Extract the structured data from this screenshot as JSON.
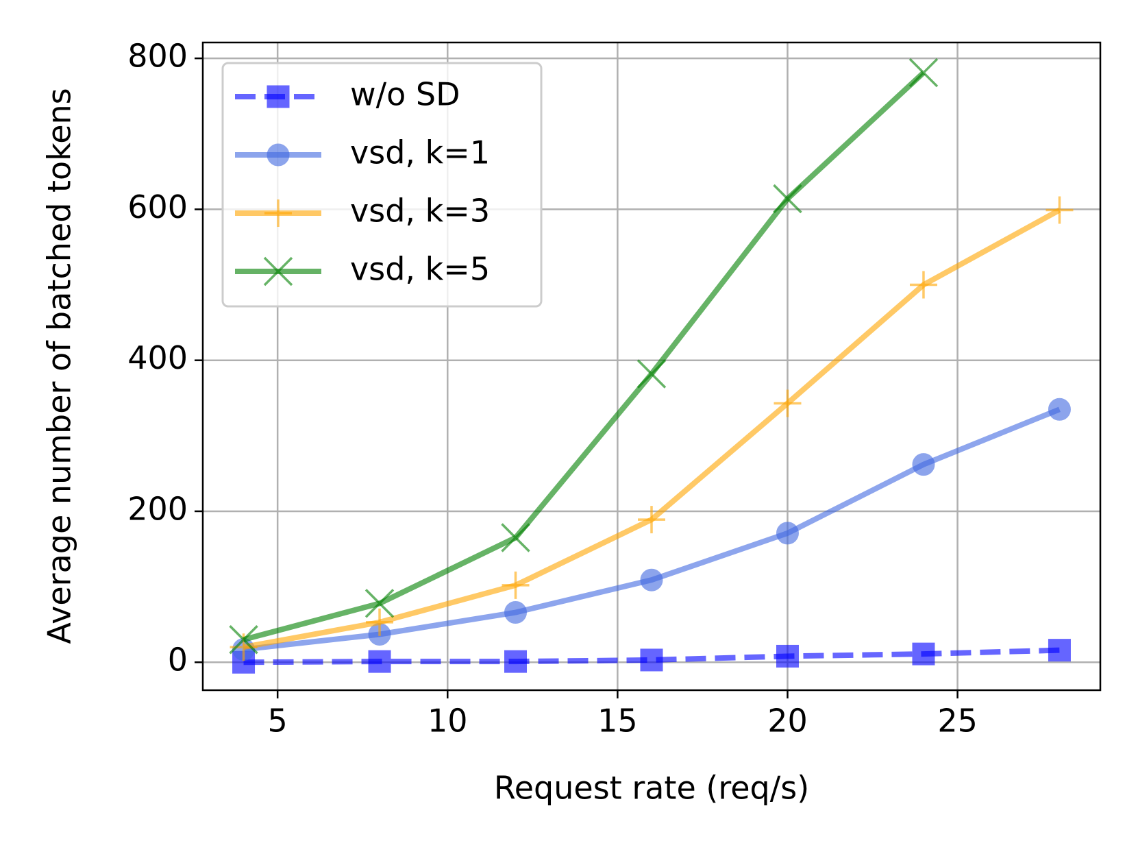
{
  "chart_data": {
    "type": "line",
    "xlabel": "Request rate (req/s)",
    "ylabel": "Average number of batched tokens",
    "x": [
      4,
      8,
      12,
      16,
      20,
      24,
      28
    ],
    "series": [
      {
        "name": "w/o SD",
        "color": "#0000ff",
        "marker": "square",
        "linestyle": "dashed",
        "values": [
          0,
          1,
          1,
          3,
          8,
          11,
          16
        ]
      },
      {
        "name": "vsd, k=1",
        "color": "#4169e1",
        "marker": "circle",
        "linestyle": "solid",
        "values": [
          17,
          37,
          66,
          109,
          171,
          262,
          335
        ]
      },
      {
        "name": "vsd, k=3",
        "color": "#ffa500",
        "marker": "plus",
        "linestyle": "solid",
        "values": [
          20,
          53,
          102,
          189,
          343,
          500,
          599
        ]
      },
      {
        "name": "vsd, k=5",
        "color": "#008000",
        "marker": "cross",
        "linestyle": "solid",
        "values": [
          30,
          78,
          165,
          382,
          614,
          781,
          null
        ]
      }
    ],
    "xlim": [
      2.8,
      29.2
    ],
    "ylim": [
      -37,
      821
    ],
    "xticks": [
      5,
      10,
      15,
      20,
      25
    ],
    "yticks": [
      0,
      200,
      400,
      600,
      800
    ],
    "grid": true,
    "legend": "upper left"
  }
}
